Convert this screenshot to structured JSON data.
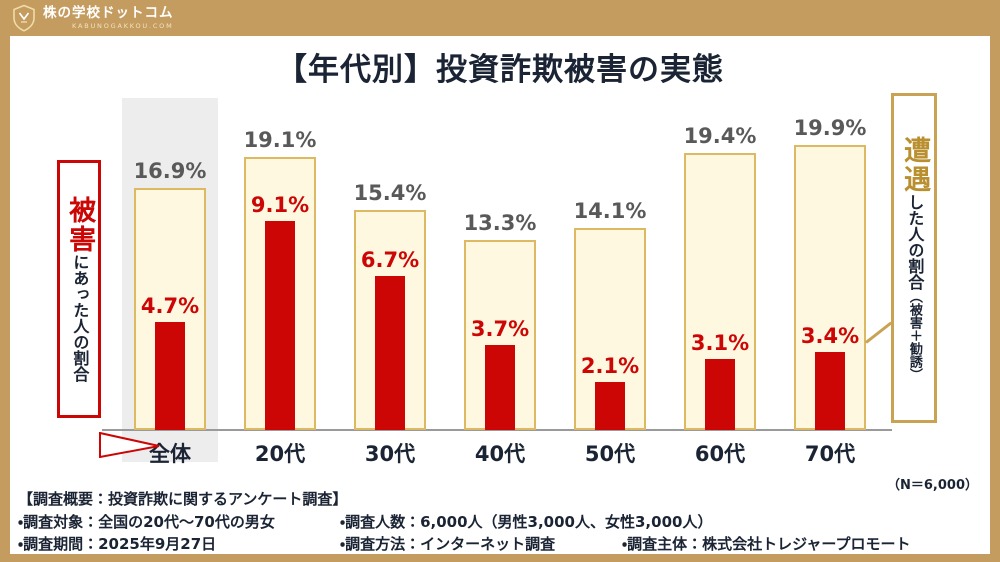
{
  "brand": {
    "name": "株の学校ドットコム",
    "tagline": "KABUNOGAKKOU.COM"
  },
  "title": "【年代別】投資詐欺被害の実態",
  "chart_data": {
    "type": "bar",
    "categories": [
      "全体",
      "20代",
      "30代",
      "40代",
      "50代",
      "60代",
      "70代"
    ],
    "series": [
      {
        "name": "遭遇した人の割合（被害＋勧誘）",
        "values": [
          16.9,
          19.1,
          15.4,
          13.3,
          14.1,
          19.4,
          19.9
        ],
        "color": "#FFF8E1",
        "border_color": "#DDB964",
        "label_color": "#595959"
      },
      {
        "name": "被害にあった人の割合",
        "values": [
          4.7,
          9.1,
          6.7,
          3.7,
          2.1,
          3.1,
          3.4
        ],
        "color": "#CC0505",
        "label_color": "#CC0505"
      }
    ],
    "value_suffix": "%",
    "highlight_category_index": 0,
    "ylim": [
      0,
      21
    ],
    "grid": false,
    "legend_position": "side-callouts"
  },
  "callout_left": {
    "emph": "被害",
    "rest": "にあった人の割合"
  },
  "callout_right": {
    "emph": "遭遇",
    "rest": "した人の割合",
    "paren": "（被害＋勧誘）"
  },
  "footer": {
    "n": "（N＝6,000）",
    "heading": "【調査概要：投資詐欺に関するアンケート調査】",
    "row1": [
      "・調査対象：全国の20代～70代の男女",
      "・調査人数：6,000人（男性3,000人、女性3,000人）"
    ],
    "row2": [
      "・調査期間：2025年9月27日",
      "・調査方法：インターネット調査",
      "・調査主体：株式会社トレジャープロモート"
    ]
  },
  "colors": {
    "frame": "#C59C60",
    "red": "#CC0505",
    "gold_border": "#C9A254",
    "bar_fill": "#FFF8E1",
    "bar_border": "#DDB964",
    "highlight": "#EDEDED",
    "title_text": "#1B2434",
    "gray_label": "#595959"
  }
}
